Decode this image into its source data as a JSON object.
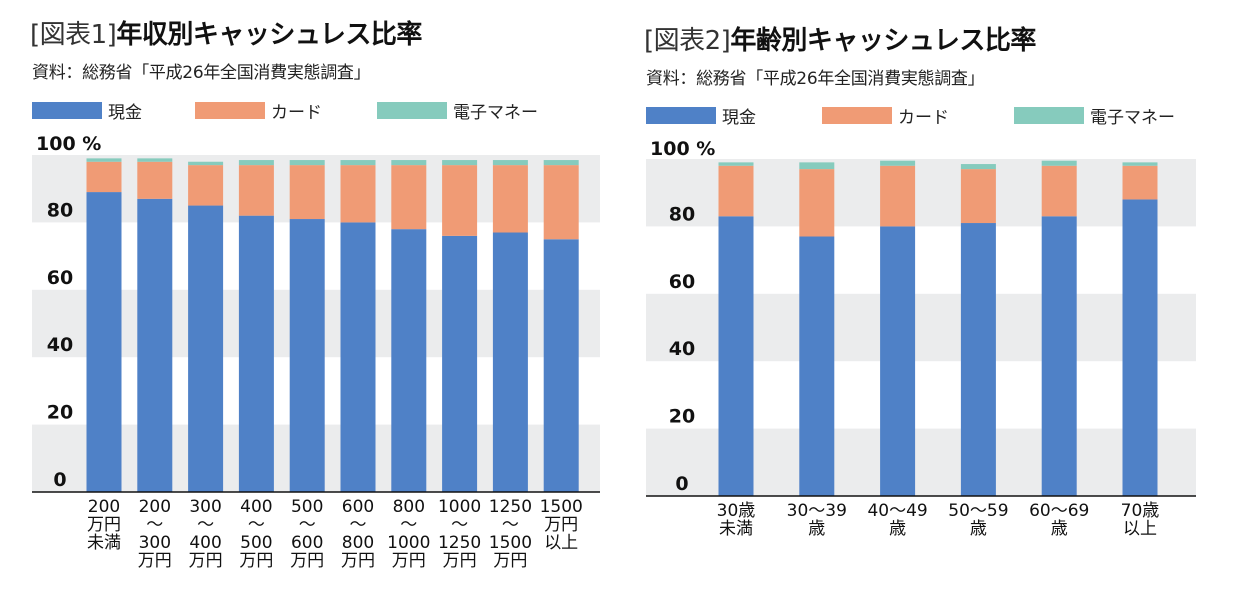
{
  "chart_data": [
    {
      "type": "bar",
      "stacked": true,
      "title_prefix": "[図表1]",
      "title": "年収別キャッシュレス比率",
      "source": "資料：総務省「平成26年全国消費実態調査」",
      "ylabel": "",
      "xlabel": "",
      "y_top_label": "100 %",
      "ylim": [
        0,
        100
      ],
      "yticks": [
        0,
        20,
        40,
        60,
        80
      ],
      "grid_bands": true,
      "legend_placement": "top-left",
      "categories": [
        [
          "200",
          "万円",
          "未満"
        ],
        [
          "200",
          "〜",
          "300",
          "万円"
        ],
        [
          "300",
          "〜",
          "400",
          "万円"
        ],
        [
          "400",
          "〜",
          "500",
          "万円"
        ],
        [
          "500",
          "〜",
          "600",
          "万円"
        ],
        [
          "600",
          "〜",
          "800",
          "万円"
        ],
        [
          "800",
          "〜",
          "1000",
          "万円"
        ],
        [
          "1000",
          "〜",
          "1250",
          "万円"
        ],
        [
          "1250",
          "〜",
          "1500",
          "万円"
        ],
        [
          "1500",
          "万円",
          "以上"
        ]
      ],
      "series": [
        {
          "name": "現金",
          "color": "#4f81c7",
          "values": [
            89,
            87,
            85,
            82,
            81,
            80,
            78,
            76,
            77,
            75
          ]
        },
        {
          "name": "カード",
          "color": "#f09b75",
          "values": [
            9,
            11,
            12,
            15,
            16,
            17,
            19,
            21,
            20,
            22
          ]
        },
        {
          "name": "電子マネー",
          "color": "#86cbbd",
          "values": [
            1,
            1,
            1,
            1.5,
            1.5,
            1.5,
            1.5,
            1.5,
            1.5,
            1.5
          ]
        }
      ]
    },
    {
      "type": "bar",
      "stacked": true,
      "title_prefix": "[図表2]",
      "title": "年齢別キャッシュレス比率",
      "source": "資料：総務省「平成26年全国消費実態調査」",
      "ylabel": "",
      "xlabel": "",
      "y_top_label": "100 %",
      "ylim": [
        0,
        100
      ],
      "yticks": [
        0,
        20,
        40,
        60,
        80
      ],
      "grid_bands": true,
      "legend_placement": "top-left",
      "categories": [
        [
          "30歳",
          "未満"
        ],
        [
          "30〜39",
          "歳"
        ],
        [
          "40〜49",
          "歳"
        ],
        [
          "50〜59",
          "歳"
        ],
        [
          "60〜69",
          "歳"
        ],
        [
          "70歳",
          "以上"
        ]
      ],
      "series": [
        {
          "name": "現金",
          "color": "#4f81c7",
          "values": [
            83,
            77,
            80,
            81,
            83,
            88
          ]
        },
        {
          "name": "カード",
          "color": "#f09b75",
          "values": [
            15,
            20,
            18,
            16,
            15,
            10
          ]
        },
        {
          "name": "電子マネー",
          "color": "#86cbbd",
          "values": [
            1,
            2,
            1.5,
            1.5,
            1.5,
            1
          ]
        }
      ]
    }
  ]
}
